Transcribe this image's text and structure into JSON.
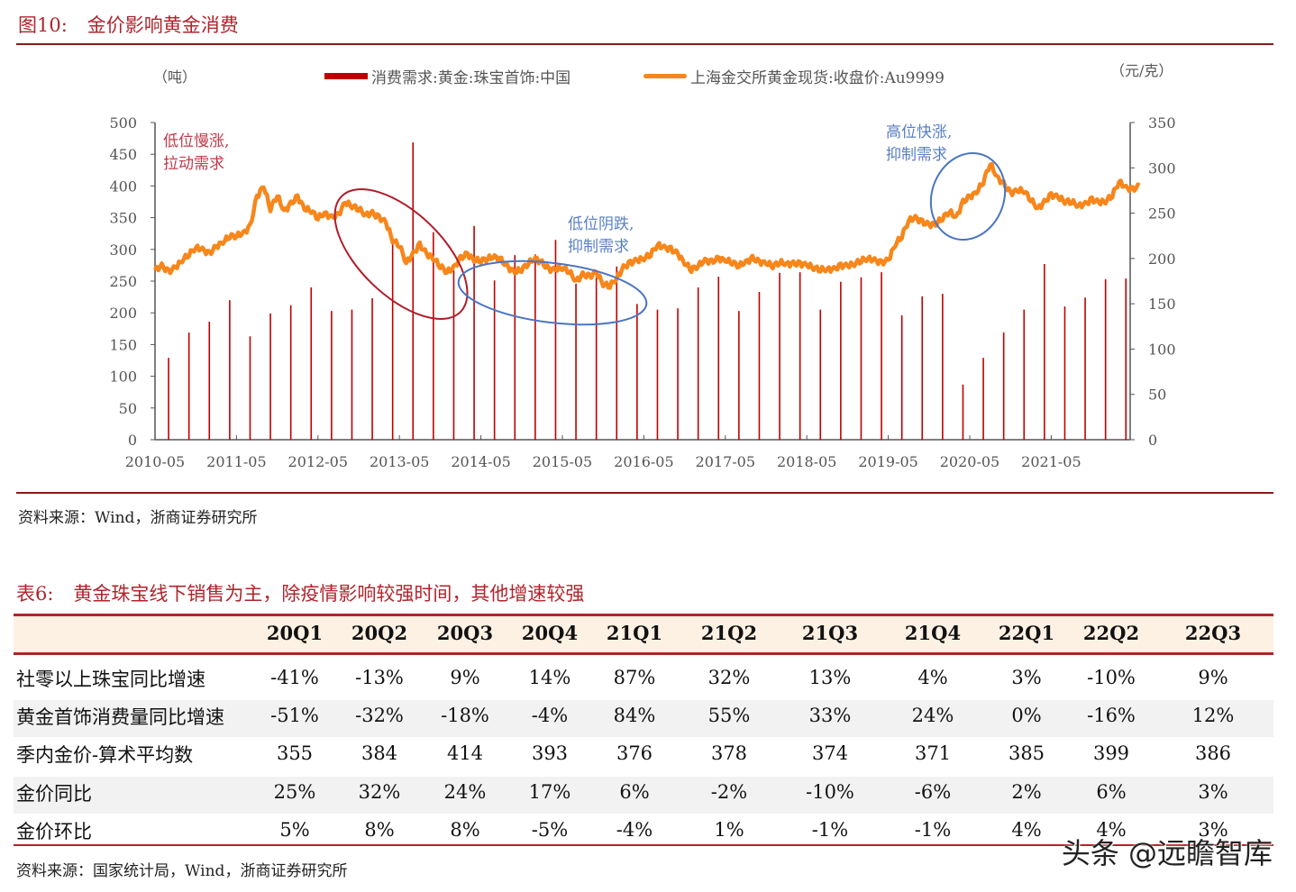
{
  "figure": {
    "number": "图10:",
    "title": "金价影响黄金消费",
    "source": "资料来源：Wind，浙商证券研究所"
  },
  "chart_data": {
    "type": "bar+line",
    "left_unit": "（吨）",
    "right_unit": "（元/克）",
    "legend_position": "top",
    "legend": [
      "消费需求:黄金:珠宝首饰:中国",
      "上海金交所黄金现货:收盘价:Au9999"
    ],
    "colors": {
      "bar": "#c00000",
      "line": "#f7861b"
    },
    "left_axis": {
      "range": [
        0,
        500
      ],
      "ticks": [
        "0",
        "50",
        "100",
        "150",
        "200",
        "250",
        "300",
        "350",
        "400",
        "450",
        "500"
      ]
    },
    "right_axis": {
      "range": [
        0,
        350
      ],
      "ticks": [
        "0",
        "50",
        "100",
        "150",
        "200",
        "250",
        "300",
        "350"
      ]
    },
    "x_ticks": [
      "2010-05",
      "2011-05",
      "2012-05",
      "2013-05",
      "2014-05",
      "2015-05",
      "2016-05",
      "2017-05",
      "2018-05",
      "2019-05",
      "2020-05",
      "2021-05"
    ],
    "bars": {
      "name": "消费需求:黄金:珠宝首饰:中国",
      "start_quarter": "2010Q3",
      "values": [
        129,
        169,
        186,
        220,
        163,
        199,
        212,
        240,
        203,
        205,
        223,
        317,
        469,
        327,
        267,
        337,
        251,
        291,
        292,
        315,
        246,
        263,
        273,
        214,
        205,
        207,
        240,
        257,
        203,
        233,
        263,
        264,
        205,
        249,
        256,
        264,
        196,
        226,
        230,
        87,
        129,
        169,
        205,
        277,
        210,
        224,
        253,
        254
      ]
    },
    "line": {
      "name": "上海金交所黄金现货:收盘价:Au9999",
      "start_month": "2010-05",
      "values": [
        187,
        192,
        185,
        190,
        198,
        205,
        212,
        210,
        205,
        213,
        218,
        225,
        225,
        228,
        235,
        268,
        280,
        255,
        270,
        252,
        260,
        268,
        255,
        253,
        245,
        250,
        245,
        248,
        262,
        258,
        255,
        248,
        250,
        245,
        240,
        220,
        215,
        195,
        205,
        215,
        205,
        200,
        192,
        185,
        190,
        200,
        205,
        198,
        198,
        200,
        202,
        198,
        190,
        185,
        188,
        195,
        200,
        195,
        188,
        188,
        190,
        186,
        175,
        182,
        180,
        185,
        172,
        170,
        178,
        190,
        195,
        198,
        200,
        205,
        215,
        212,
        210,
        205,
        195,
        188,
        192,
        198,
        196,
        200,
        198,
        196,
        192,
        196,
        200,
        196,
        195,
        192,
        196,
        194,
        194,
        194,
        193,
        190,
        188,
        188,
        188,
        192,
        192,
        194,
        198,
        200,
        198,
        195,
        198,
        215,
        225,
        242,
        245,
        240,
        237,
        238,
        245,
        252,
        245,
        262,
        268,
        273,
        285,
        305,
        290,
        282,
        272,
        275,
        275,
        265,
        255,
        262,
        270,
        268,
        263,
        263,
        258,
        260,
        265,
        262,
        263,
        270,
        285,
        278,
        276,
        280
      ]
    },
    "annotations": [
      "低位慢涨,",
      "拉动需求",
      "低位阴跌,",
      "抑制需求",
      "高位快涨,",
      "抑制需求"
    ]
  },
  "table": {
    "number": "表6:",
    "title": "黄金珠宝线下销售为主，除疫情影响较强时间，其他增速较强",
    "columns": [
      "20Q1",
      "20Q2",
      "20Q3",
      "20Q4",
      "21Q1",
      "21Q2",
      "21Q3",
      "21Q4",
      "22Q1",
      "22Q2",
      "22Q3"
    ],
    "rows": [
      {
        "label": "社零以上珠宝同比增速",
        "values": [
          "-41%",
          "-13%",
          "9%",
          "14%",
          "87%",
          "32%",
          "13%",
          "4%",
          "3%",
          "-10%",
          "9%"
        ]
      },
      {
        "label": "黄金首饰消费量同比增速",
        "values": [
          "-51%",
          "-32%",
          "-18%",
          "-4%",
          "84%",
          "55%",
          "33%",
          "24%",
          "0%",
          "-16%",
          "12%"
        ]
      },
      {
        "label": "季内金价-算术平均数",
        "values": [
          "355",
          "384",
          "414",
          "393",
          "376",
          "378",
          "374",
          "371",
          "385",
          "399",
          "386"
        ]
      },
      {
        "label": "金价同比",
        "values": [
          "25%",
          "32%",
          "24%",
          "17%",
          "6%",
          "-2%",
          "-10%",
          "-6%",
          "2%",
          "6%",
          "3%"
        ]
      },
      {
        "label": "金价环比",
        "values": [
          "5%",
          "8%",
          "8%",
          "-5%",
          "-4%",
          "1%",
          "-1%",
          "-1%",
          "4%",
          "4%",
          "3%"
        ]
      }
    ],
    "source": "资料来源：国家统计局，Wind，浙商证券研究所",
    "colors": {
      "header_bg": "#fdf1e3",
      "stripe_bg": "#f2f2f2",
      "rule": "#b0242c"
    }
  },
  "watermark": "头条 @远瞻智库"
}
